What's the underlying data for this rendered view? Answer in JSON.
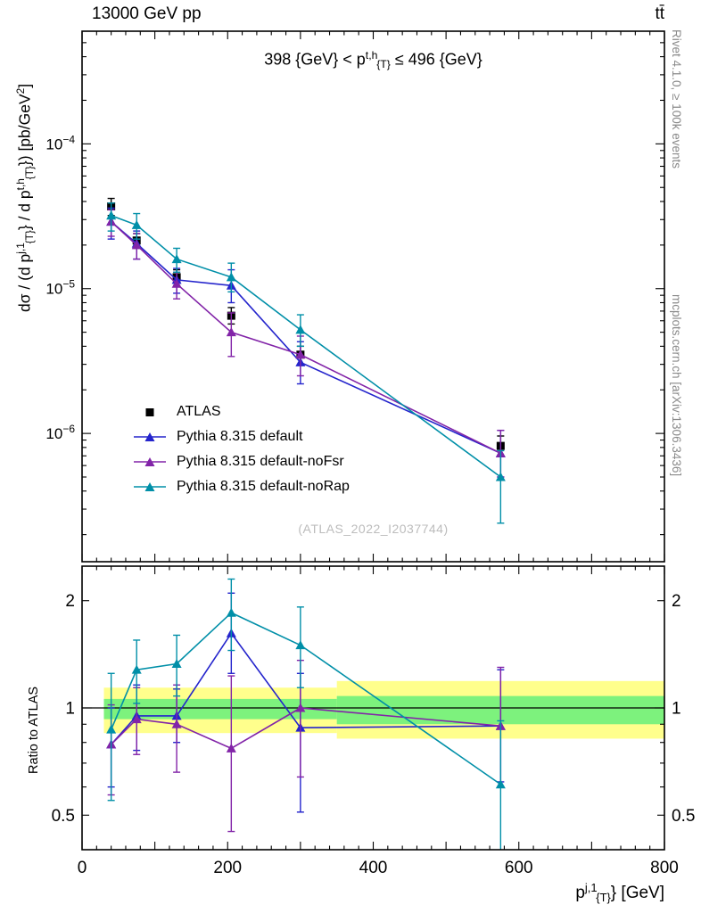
{
  "header": {
    "left_label": "13000 GeV pp",
    "right_label": "tt̄"
  },
  "side_notes": {
    "rivet": "Rivet 4.1.0, ≥ 100k events",
    "mcplots": "mcplots.cern.ch [arXiv:1306.3436]"
  },
  "watermark": "(ATLAS_2022_I2037744)",
  "panel_title_segments": [
    {
      "t": "398 {GeV} < p"
    },
    {
      "sup": "t,h"
    },
    {
      "sub": "{T}"
    },
    {
      "t": " ≤ 496 {GeV}"
    }
  ],
  "axis_labels": {
    "main_y_segments": [
      {
        "t": "dσ / (d p"
      },
      {
        "sup": "j,1"
      },
      {
        "sub": "{T}"
      },
      {
        "t": "} / d p"
      },
      {
        "sup": "t,h"
      },
      {
        "sub": "{T}"
      },
      {
        "t": "}) [pb/GeV"
      },
      {
        "sup": "2"
      },
      {
        "t": "]"
      }
    ],
    "x_segments": [
      {
        "t": "p"
      },
      {
        "sup": "j,1"
      },
      {
        "sub": "{T}"
      },
      {
        "t": "} [GeV]"
      }
    ],
    "ratio_y": "Ratio to ATLAS"
  },
  "colors": {
    "band_yellow": "#ffff8c",
    "band_green": "#7df27d",
    "frame": "#000000",
    "reference_line": "#000000"
  },
  "chart_data": {
    "type": "line",
    "xlim": [
      0,
      800
    ],
    "x_ticks": [
      0,
      200,
      400,
      600,
      800
    ],
    "x_minor_step": 20,
    "x_major_step": 100,
    "x_values": [
      40,
      75,
      130,
      205,
      300,
      575
    ],
    "main_panel": {
      "yscale": "log",
      "ylim": [
        1.3e-07,
        0.0006
      ],
      "ytick_exponents": [
        -4,
        -5,
        -6
      ]
    },
    "ratio_panel": {
      "yscale": "log",
      "ylim": [
        0.4,
        2.5
      ],
      "yticks": [
        2,
        1,
        0.5
      ],
      "reference_line": 1
    },
    "bands": [
      {
        "xmin": 30,
        "xmax": 350,
        "yellow": [
          0.85,
          1.14
        ],
        "green": [
          0.93,
          1.06
        ]
      },
      {
        "xmin": 350,
        "xmax": 800,
        "yellow": [
          0.82,
          1.19
        ],
        "green": [
          0.9,
          1.08
        ]
      }
    ],
    "series": [
      {
        "name": "ATLAS",
        "color": "#000000",
        "marker": "square",
        "draw_line": false,
        "y": [
          3.7e-05,
          2.15e-05,
          1.2e-05,
          6.5e-06,
          3.5e-06,
          8.2e-07
        ],
        "y_lo": [
          3.2e-05,
          1.9e-05,
          1.05e-05,
          5.7e-06,
          3e-06,
          6.9e-07
        ],
        "y_hi": [
          4.2e-05,
          2.4e-05,
          1.35e-05,
          7.4e-06,
          4e-06,
          9.6e-07
        ]
      },
      {
        "name": "Pythia 8.315 default",
        "color": "#2424cc",
        "marker": "triangle",
        "draw_line": true,
        "y": [
          2.9e-05,
          2.05e-05,
          1.15e-05,
          1.05e-05,
          3.1e-06,
          7.3e-07
        ],
        "y_lo": [
          2.2e-05,
          1.6e-05,
          9.3e-06,
          8e-06,
          2.2e-06,
          5e-07
        ],
        "y_hi": [
          3.6e-05,
          2.5e-05,
          1.38e-05,
          1.35e-05,
          4.3e-06,
          1.05e-06
        ],
        "ratio": [
          0.79,
          0.95,
          0.95,
          1.62,
          0.88,
          0.89
        ],
        "ratio_lo": [
          0.6,
          0.76,
          0.8,
          1.25,
          0.51,
          0.62
        ],
        "ratio_hi": [
          1.0,
          1.16,
          1.13,
          2.1,
          1.25,
          1.28
        ]
      },
      {
        "name": "Pythia 8.315 default-noFsr",
        "color": "#8224a8",
        "marker": "triangle",
        "draw_line": true,
        "y": [
          2.9e-05,
          2e-05,
          1.08e-05,
          5e-06,
          3.5e-06,
          7.3e-07
        ],
        "y_lo": [
          2.3e-05,
          1.6e-05,
          8.5e-06,
          3.4e-06,
          2.5e-06,
          5e-07
        ],
        "y_hi": [
          3.5e-05,
          2.4e-05,
          1.3e-05,
          6.8e-06,
          4.7e-06,
          1.05e-06
        ],
        "ratio": [
          0.79,
          0.93,
          0.9,
          0.77,
          1.0,
          0.89
        ],
        "ratio_lo": [
          0.57,
          0.74,
          0.66,
          0.45,
          0.64,
          0.6
        ],
        "ratio_hi": [
          1.02,
          1.14,
          1.16,
          1.23,
          1.36,
          1.3
        ]
      },
      {
        "name": "Pythia 8.315 default-noRap",
        "color": "#008fa8",
        "marker": "triangle",
        "draw_line": true,
        "y": [
          3.2e-05,
          2.75e-05,
          1.6e-05,
          1.2e-05,
          5.2e-06,
          5e-07
        ],
        "y_lo": [
          2.5e-05,
          2.2e-05,
          1.3e-05,
          9.5e-06,
          4e-06,
          2.4e-07
        ],
        "y_hi": [
          3.9e-05,
          3.3e-05,
          1.9e-05,
          1.5e-05,
          6.6e-06,
          7.6e-07
        ],
        "ratio": [
          0.87,
          1.28,
          1.33,
          1.85,
          1.5,
          0.61
        ],
        "ratio_lo": [
          0.55,
          1.03,
          1.08,
          1.45,
          1.14,
          0.3
        ],
        "ratio_hi": [
          1.25,
          1.55,
          1.6,
          2.3,
          1.92,
          0.92
        ]
      }
    ]
  }
}
